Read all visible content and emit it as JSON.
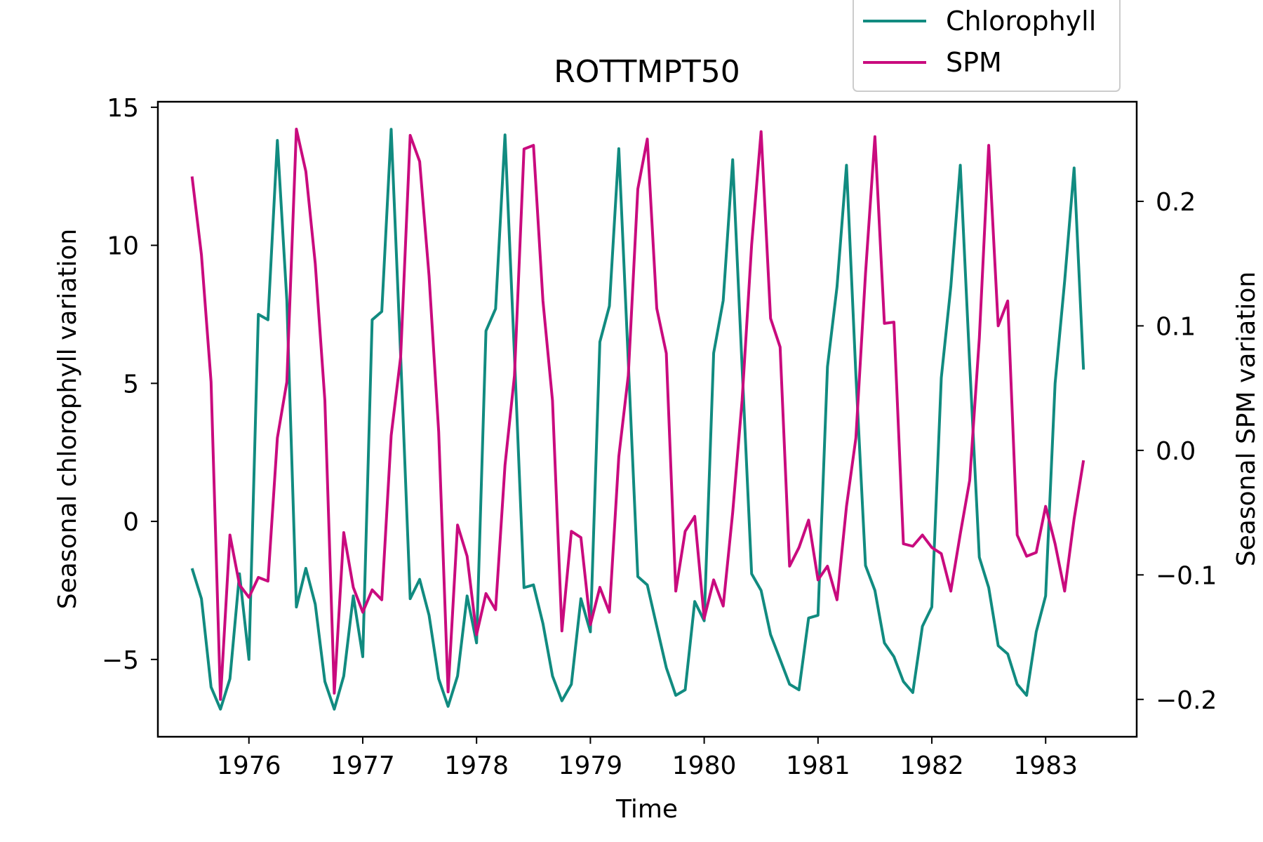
{
  "chart_data": {
    "type": "line",
    "title": "ROTTMPT50",
    "xlabel": "Time",
    "ylabel_left": "Seasonal chlorophyll variation",
    "ylabel_right": "Seasonal SPM variation",
    "xlim": [
      1975.2,
      1983.8
    ],
    "ylim_left": [
      -7.8,
      15.2
    ],
    "ylim_right": [
      -0.23,
      0.28
    ],
    "x_ticks": [
      1976,
      1977,
      1978,
      1979,
      1980,
      1981,
      1982,
      1983
    ],
    "x_tick_labels": [
      "1976",
      "1977",
      "1978",
      "1979",
      "1980",
      "1981",
      "1982",
      "1983"
    ],
    "y_left_ticks": [
      -5,
      0,
      5,
      10,
      15
    ],
    "y_left_tick_labels": [
      "−5",
      "0",
      "5",
      "10",
      "15"
    ],
    "y_right_ticks": [
      -0.2,
      -0.1,
      0.0,
      0.1,
      0.2
    ],
    "y_right_tick_labels": [
      "−0.2",
      "−0.1",
      "0.0",
      "0.1",
      "0.2"
    ],
    "legend_placement": "top-right, above plot",
    "grid": false,
    "series": [
      {
        "name": "Chlorophyll",
        "axis": "left",
        "color": "#118b80",
        "x": [
          1975.5,
          1975.583,
          1975.667,
          1975.75,
          1975.833,
          1975.917,
          1976.0,
          1976.083,
          1976.167,
          1976.25,
          1976.333,
          1976.417,
          1976.5,
          1976.583,
          1976.667,
          1976.75,
          1976.833,
          1976.917,
          1977.0,
          1977.083,
          1977.167,
          1977.25,
          1977.333,
          1977.417,
          1977.5,
          1977.583,
          1977.667,
          1977.75,
          1977.833,
          1977.917,
          1978.0,
          1978.083,
          1978.167,
          1978.25,
          1978.333,
          1978.417,
          1978.5,
          1978.583,
          1978.667,
          1978.75,
          1978.833,
          1978.917,
          1979.0,
          1979.083,
          1979.167,
          1979.25,
          1979.333,
          1979.417,
          1979.5,
          1979.583,
          1979.667,
          1979.75,
          1979.833,
          1979.917,
          1980.0,
          1980.083,
          1980.167,
          1980.25,
          1980.333,
          1980.417,
          1980.5,
          1980.583,
          1980.667,
          1980.75,
          1980.833,
          1980.917,
          1981.0,
          1981.083,
          1981.167,
          1981.25,
          1981.333,
          1981.417,
          1981.5,
          1981.583,
          1981.667,
          1981.75,
          1981.833,
          1981.917,
          1982.0,
          1982.083,
          1982.167,
          1982.25,
          1982.333,
          1982.417,
          1982.5,
          1982.583,
          1982.667,
          1982.75,
          1982.833,
          1982.917,
          1983.0,
          1983.083,
          1983.167,
          1983.25,
          1983.333
        ],
        "values": [
          -1.7,
          -2.8,
          -6.0,
          -6.8,
          -5.7,
          -1.9,
          -5.0,
          7.5,
          7.3,
          13.8,
          8.0,
          -3.1,
          -1.7,
          -3.0,
          -5.8,
          -6.8,
          -5.6,
          -2.7,
          -4.9,
          7.3,
          7.6,
          14.2,
          6.0,
          -2.8,
          -2.1,
          -3.4,
          -5.7,
          -6.7,
          -5.6,
          -2.7,
          -4.4,
          6.9,
          7.7,
          14.0,
          6.0,
          -2.4,
          -2.3,
          -3.7,
          -5.6,
          -6.5,
          -5.9,
          -2.8,
          -4.0,
          6.5,
          7.8,
          13.5,
          5.8,
          -2.0,
          -2.3,
          -3.8,
          -5.3,
          -6.3,
          -6.1,
          -2.9,
          -3.6,
          6.1,
          8.0,
          13.1,
          5.6,
          -1.9,
          -2.5,
          -4.1,
          -5.0,
          -5.9,
          -6.1,
          -3.5,
          -3.4,
          5.6,
          8.5,
          12.9,
          5.3,
          -1.6,
          -2.5,
          -4.4,
          -4.9,
          -5.8,
          -6.2,
          -3.8,
          -3.1,
          5.2,
          8.5,
          12.9,
          5.7,
          -1.3,
          -2.4,
          -4.5,
          -4.8,
          -5.9,
          -6.3,
          -4.0,
          -2.7,
          5.0,
          8.7,
          12.8,
          5.5
        ]
      },
      {
        "name": "SPM",
        "axis": "right",
        "color": "#c90b7e",
        "x": [
          1975.5,
          1975.583,
          1975.667,
          1975.75,
          1975.833,
          1975.917,
          1976.0,
          1976.083,
          1976.167,
          1976.25,
          1976.333,
          1976.417,
          1976.5,
          1976.583,
          1976.667,
          1976.75,
          1976.833,
          1976.917,
          1977.0,
          1977.083,
          1977.167,
          1977.25,
          1977.333,
          1977.417,
          1977.5,
          1977.583,
          1977.667,
          1977.75,
          1977.833,
          1977.917,
          1978.0,
          1978.083,
          1978.167,
          1978.25,
          1978.333,
          1978.417,
          1978.5,
          1978.583,
          1978.667,
          1978.75,
          1978.833,
          1978.917,
          1979.0,
          1979.083,
          1979.167,
          1979.25,
          1979.333,
          1979.417,
          1979.5,
          1979.583,
          1979.667,
          1979.75,
          1979.833,
          1979.917,
          1980.0,
          1980.083,
          1980.167,
          1980.25,
          1980.333,
          1980.417,
          1980.5,
          1980.583,
          1980.667,
          1980.75,
          1980.833,
          1980.917,
          1981.0,
          1981.083,
          1981.167,
          1981.25,
          1981.333,
          1981.417,
          1981.5,
          1981.583,
          1981.667,
          1981.75,
          1981.833,
          1981.917,
          1982.0,
          1982.083,
          1982.167,
          1982.25,
          1982.333,
          1982.417,
          1982.5,
          1982.583,
          1982.667,
          1982.75,
          1982.833,
          1982.917,
          1983.0,
          1983.083,
          1983.167,
          1983.25,
          1983.333
        ],
        "values": [
          0.22,
          0.157,
          0.055,
          -0.2,
          -0.068,
          -0.108,
          -0.118,
          -0.102,
          -0.105,
          0.01,
          0.055,
          0.258,
          0.224,
          0.15,
          0.04,
          -0.195,
          -0.066,
          -0.11,
          -0.13,
          -0.112,
          -0.12,
          0.012,
          0.075,
          0.253,
          0.232,
          0.14,
          0.015,
          -0.194,
          -0.06,
          -0.085,
          -0.148,
          -0.115,
          -0.128,
          -0.012,
          0.06,
          0.242,
          0.245,
          0.12,
          0.04,
          -0.145,
          -0.065,
          -0.07,
          -0.14,
          -0.11,
          -0.13,
          -0.005,
          0.06,
          0.21,
          0.25,
          0.114,
          0.078,
          -0.113,
          -0.065,
          -0.053,
          -0.135,
          -0.104,
          -0.125,
          -0.05,
          0.04,
          0.165,
          0.256,
          0.106,
          0.083,
          -0.093,
          -0.078,
          -0.056,
          -0.104,
          -0.093,
          -0.12,
          -0.045,
          0.01,
          0.142,
          0.252,
          0.102,
          0.103,
          -0.075,
          -0.077,
          -0.068,
          -0.078,
          -0.083,
          -0.113,
          -0.067,
          -0.024,
          0.09,
          0.245,
          0.1,
          0.12,
          -0.068,
          -0.085,
          -0.082,
          -0.045,
          -0.075,
          -0.113,
          -0.055,
          -0.008
        ]
      }
    ]
  }
}
